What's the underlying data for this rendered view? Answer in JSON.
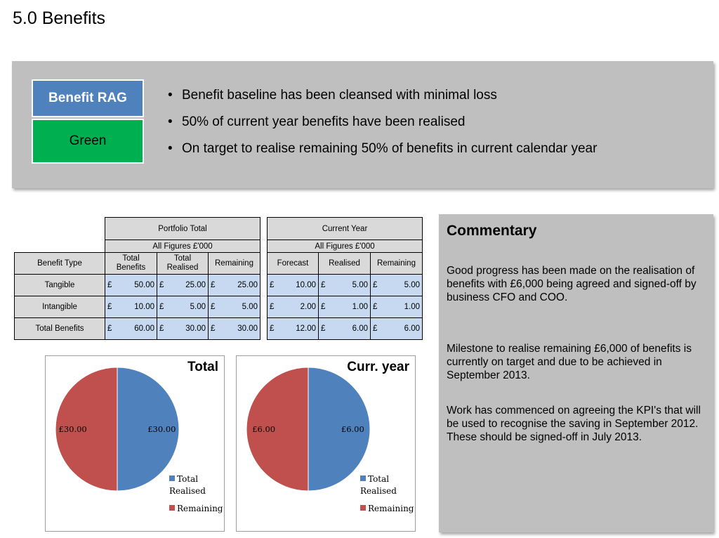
{
  "page_title": "5.0 Benefits",
  "rag": {
    "title": "Benefit RAG",
    "status": "Green",
    "title_color": "#4f81bd",
    "status_color": "#00b050"
  },
  "summary_bullets": [
    "Benefit baseline has been cleansed with minimal loss",
    "50% of current year benefits have been realised",
    "On target to realise remaining 50% of benefits in current calendar year"
  ],
  "portfolio_table": {
    "group_title": "Portfolio Total",
    "subtitle": "All Figures £'000",
    "type_header": "Benefit Type",
    "columns": [
      "Total Benefits",
      "Total Realised",
      "Remaining"
    ],
    "rows": [
      {
        "label": "Tangible",
        "values": [
          "50.00",
          "25.00",
          "25.00"
        ]
      },
      {
        "label": "Intangible",
        "values": [
          "10.00",
          "5.00",
          "5.00"
        ]
      },
      {
        "label": "Total Benefits",
        "values": [
          "60.00",
          "30.00",
          "30.00"
        ]
      }
    ],
    "currency": "£"
  },
  "current_year_table": {
    "group_title": "Current Year",
    "subtitle": "All Figures £'000",
    "columns": [
      "Forecast",
      "Realised",
      "Remaining"
    ],
    "rows": [
      {
        "values": [
          "10.00",
          "5.00",
          "5.00"
        ]
      },
      {
        "values": [
          "2.00",
          "1.00",
          "1.00"
        ]
      },
      {
        "values": [
          "12.00",
          "6.00",
          "6.00"
        ]
      }
    ],
    "currency": "£"
  },
  "commentary": {
    "title": "Commentary",
    "paragraphs": [
      "Good progress has been made on the realisation of benefits with  £6,000 being agreed and signed-off by business CFO and COO.",
      "Milestone to realise remaining £6,000 of benefits is currently on target and due to be achieved in September 2013.",
      "Work has commenced on  agreeing the KPI's that will be used to recognise the saving in September 2012.  These should be signed-off in July 2013."
    ]
  },
  "chart_data": [
    {
      "type": "pie",
      "title": "Total",
      "series": [
        {
          "name": "Total Realised",
          "value": 30.0,
          "label": "£30.00",
          "color": "#4f81bd"
        },
        {
          "name": "Remaining",
          "value": 30.0,
          "label": "£30.00",
          "color": "#c0504d"
        }
      ],
      "legend": "right"
    },
    {
      "type": "pie",
      "title": "Curr. year",
      "series": [
        {
          "name": "Total Realised",
          "value": 6.0,
          "label": "£6.00",
          "color": "#4f81bd"
        },
        {
          "name": "Remaining",
          "value": 6.0,
          "label": "£6.00",
          "color": "#c0504d"
        }
      ],
      "legend": "right"
    }
  ]
}
